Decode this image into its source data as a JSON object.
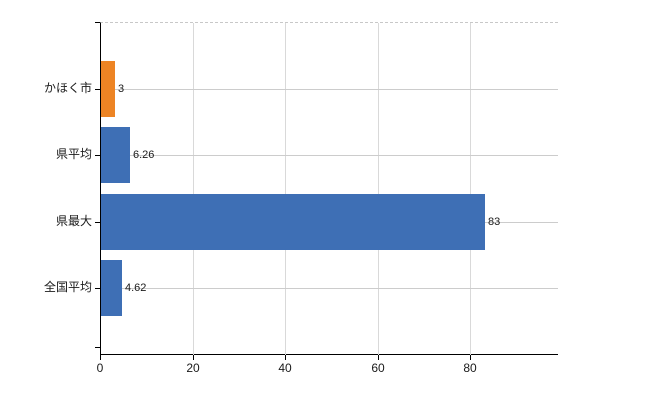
{
  "chart_data": {
    "type": "bar",
    "orientation": "horizontal",
    "title": "",
    "xlabel": "",
    "ylabel": "",
    "categories": [
      "かほく市",
      "県平均",
      "県最大",
      "全国平均"
    ],
    "values": [
      3,
      6.26,
      83,
      4.62
    ],
    "value_labels": [
      "3",
      "6.26",
      "83",
      "4.62"
    ],
    "bar_colors": [
      "#ed8424",
      "#3e6fb5",
      "#3e6fb5",
      "#3e6fb5"
    ],
    "x_ticks": [
      0,
      20,
      40,
      60,
      80
    ],
    "x_tick_labels": [
      "0",
      "20",
      "40",
      "60",
      "80"
    ],
    "xlim": [
      0,
      99
    ],
    "grid": true,
    "legend": false
  },
  "colors": {
    "highlight_bar": "#ed8424",
    "default_bar": "#3e6fb5",
    "axis": "#000000",
    "gridline_h": "#cccccc",
    "gridline_v": "#d9d9d9",
    "plot_top_border": "#c8c8c8",
    "text": "#1a1a1a",
    "background": "#ffffff"
  }
}
